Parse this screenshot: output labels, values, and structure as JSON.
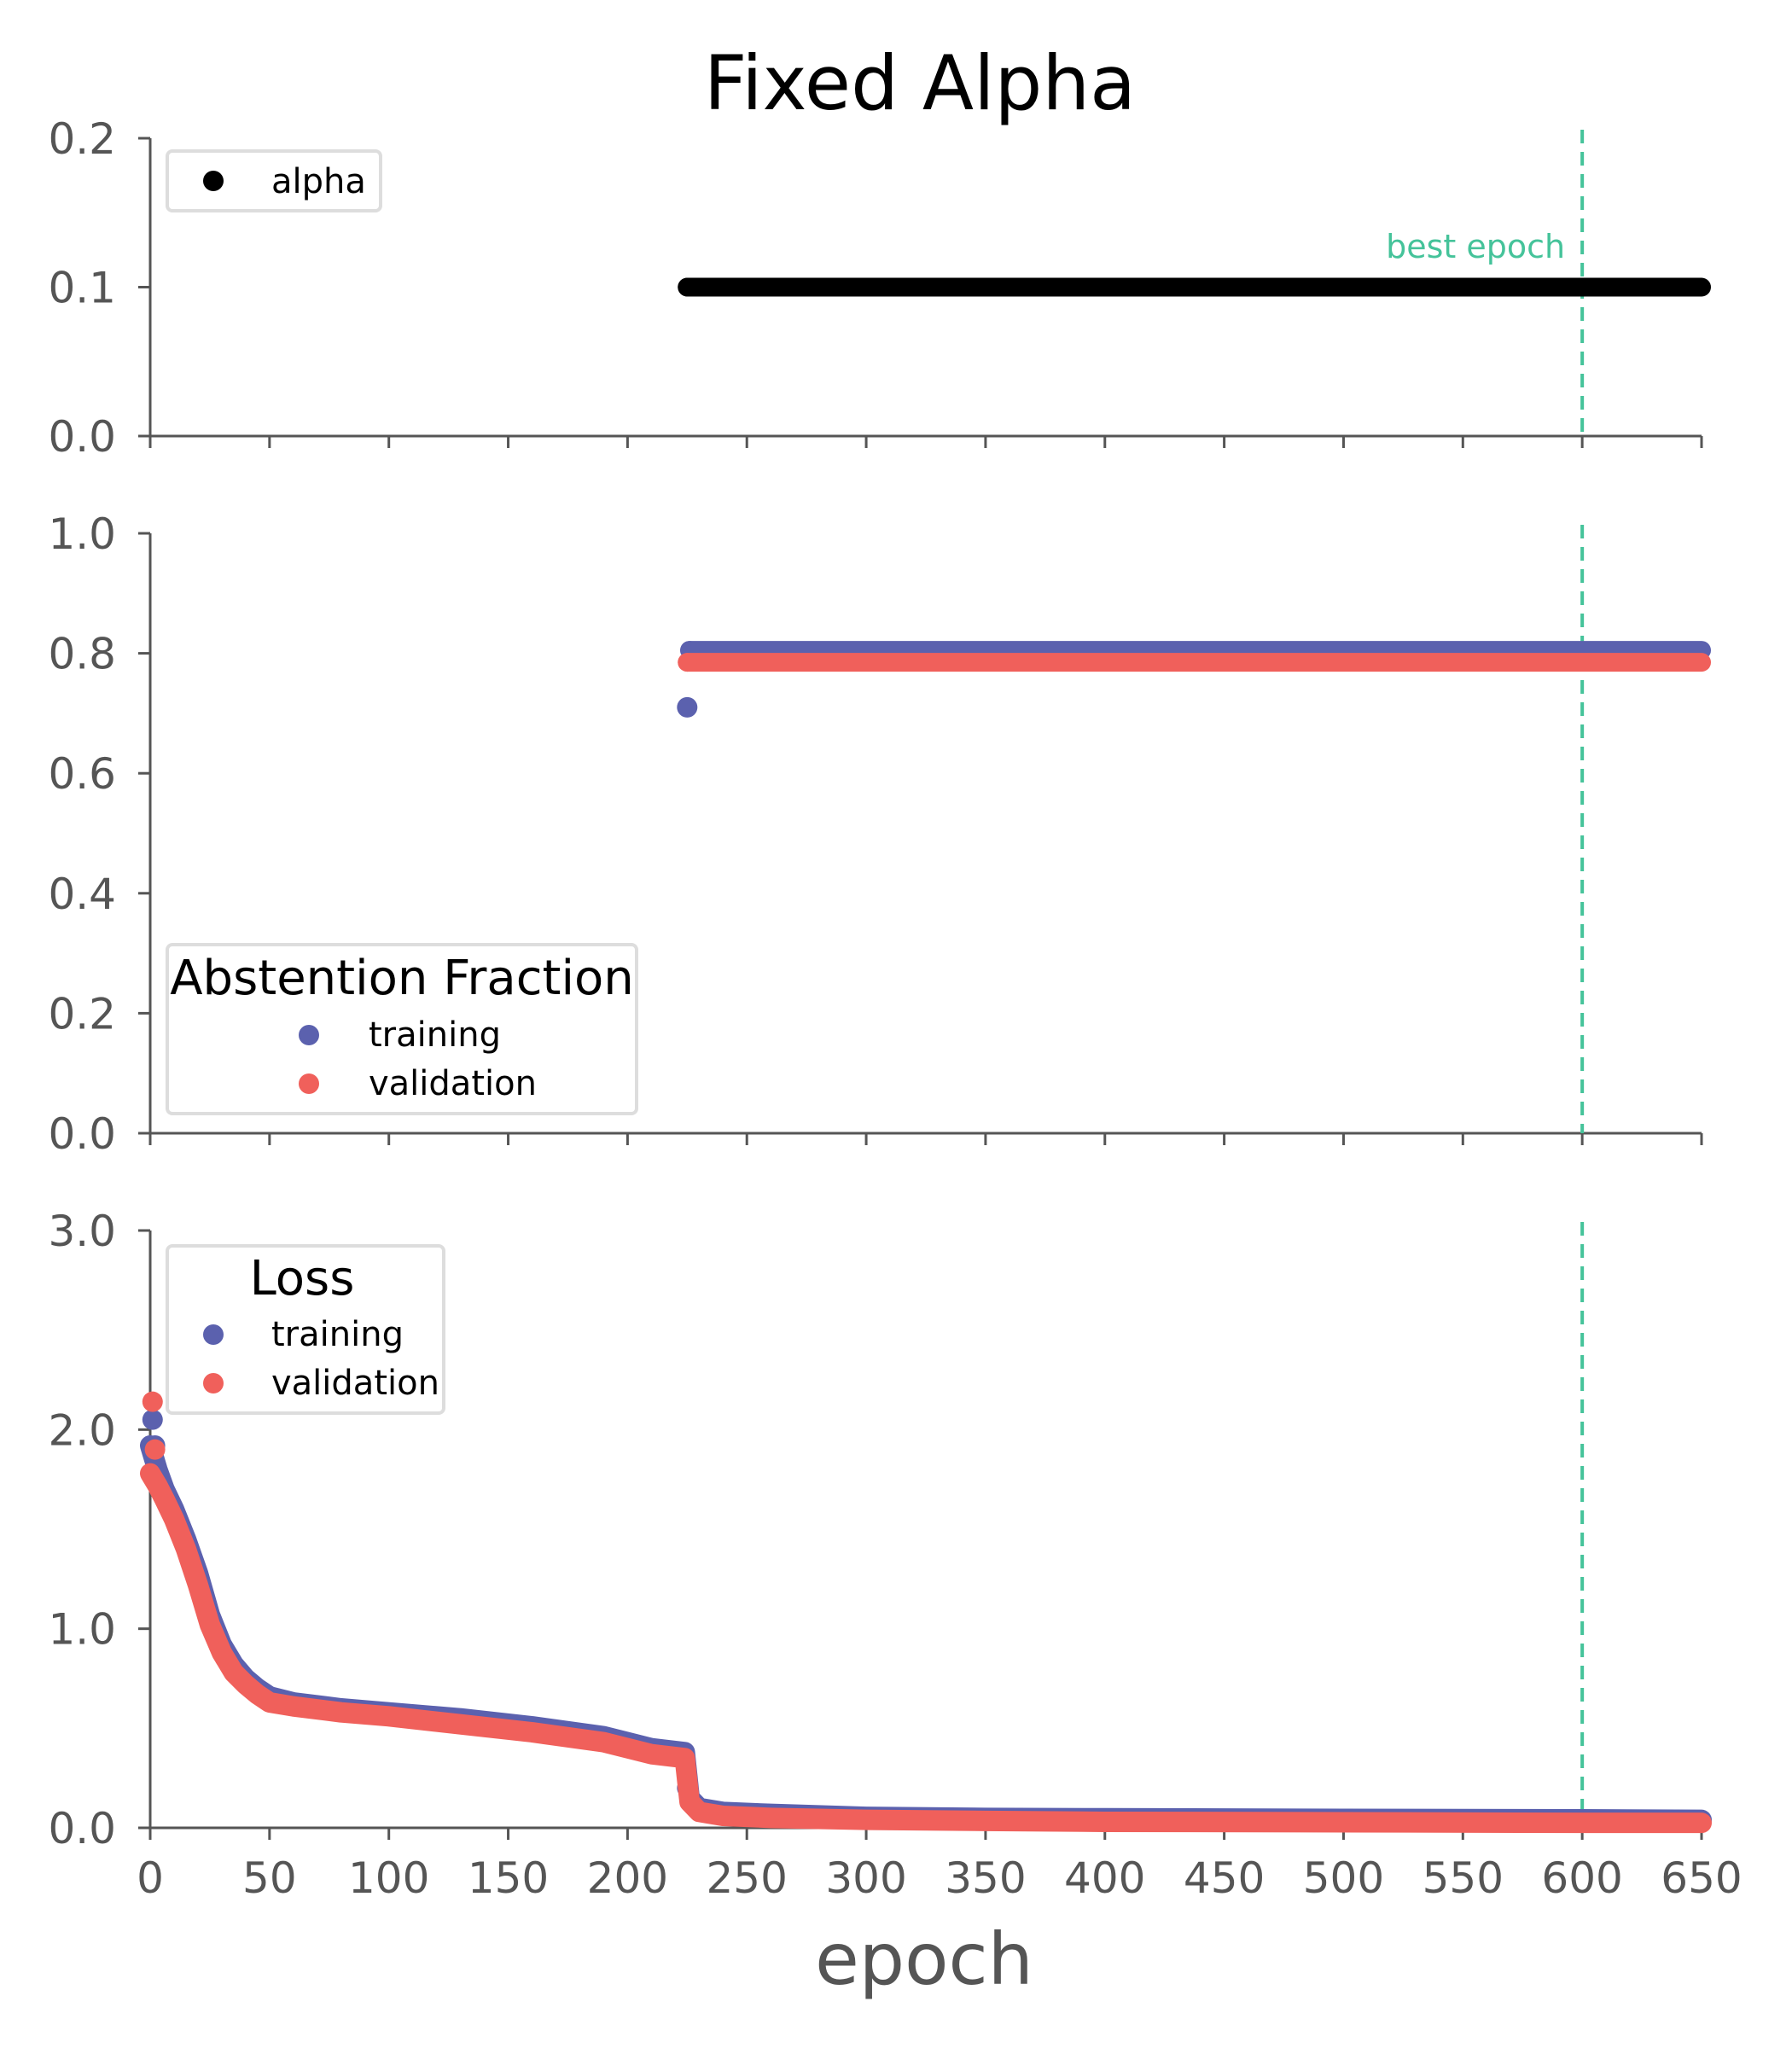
{
  "figure": {
    "title": "Fixed Alpha",
    "xlabel": "epoch"
  },
  "colors": {
    "alpha": "#000000",
    "training": "#5b61ae",
    "validation": "#f0605b",
    "best_epoch": "#45c39a",
    "axis": "#555555"
  },
  "chart_data": [
    {
      "type": "scatter",
      "panel": "alpha",
      "xlim": [
        0,
        650
      ],
      "ylim": [
        0.0,
        0.2
      ],
      "xticks": [
        "0",
        "50",
        "100",
        "150",
        "200",
        "250",
        "300",
        "350",
        "400",
        "450",
        "500",
        "550",
        "600",
        "650"
      ],
      "yticks": [
        "0.0",
        "0.1",
        "0.2"
      ],
      "legend": {
        "title": "",
        "placement": "top-left",
        "entries": [
          "alpha"
        ]
      },
      "annotations": [
        {
          "text": "best epoch",
          "x": 600
        }
      ],
      "vline": {
        "x": 600,
        "style": "dashed"
      },
      "series": [
        {
          "name": "alpha",
          "segments": [
            {
              "x_start": 225,
              "x_end": 650,
              "y": 0.1
            }
          ]
        }
      ]
    },
    {
      "type": "scatter",
      "panel": "abstention",
      "xlim": [
        0,
        650
      ],
      "ylim": [
        0.0,
        1.0
      ],
      "xticks": [
        "0",
        "50",
        "100",
        "150",
        "200",
        "250",
        "300",
        "350",
        "400",
        "450",
        "500",
        "550",
        "600",
        "650"
      ],
      "yticks": [
        "0.0",
        "0.2",
        "0.4",
        "0.6",
        "0.8",
        "1.0"
      ],
      "legend": {
        "title": "Abstention Fraction",
        "placement": "bottom-left",
        "entries": [
          "training",
          "validation"
        ]
      },
      "vline": {
        "x": 600,
        "style": "dashed"
      },
      "series": [
        {
          "name": "training",
          "points": [
            [
              225,
              0.71
            ]
          ],
          "segments": [
            {
              "x_start": 226,
              "x_end": 650,
              "y": 0.805
            }
          ]
        },
        {
          "name": "validation",
          "points": [],
          "segments": [
            {
              "x_start": 225,
              "x_end": 650,
              "y": 0.785
            }
          ]
        }
      ]
    },
    {
      "type": "scatter",
      "panel": "loss",
      "xlim": [
        0,
        650
      ],
      "ylim": [
        0.0,
        3.0
      ],
      "xticks": [
        "0",
        "50",
        "100",
        "150",
        "200",
        "250",
        "300",
        "350",
        "400",
        "450",
        "500",
        "550",
        "600",
        "650"
      ],
      "yticks": [
        "0.0",
        "1.0",
        "2.0",
        "3.0"
      ],
      "legend": {
        "title": "Loss",
        "placement": "top-left",
        "entries": [
          "training",
          "validation"
        ]
      },
      "vline": {
        "x": 600,
        "style": "dashed"
      },
      "series": [
        {
          "name": "training",
          "outliers": [
            [
              1,
              2.05
            ],
            [
              2,
              1.92
            ],
            [
              225,
              0.2
            ]
          ],
          "curve": [
            [
              0,
              1.92
            ],
            [
              3,
              1.8
            ],
            [
              6,
              1.7
            ],
            [
              10,
              1.6
            ],
            [
              15,
              1.45
            ],
            [
              20,
              1.28
            ],
            [
              25,
              1.07
            ],
            [
              30,
              0.92
            ],
            [
              35,
              0.82
            ],
            [
              40,
              0.75
            ],
            [
              45,
              0.7
            ],
            [
              50,
              0.66
            ],
            [
              60,
              0.63
            ],
            [
              80,
              0.6
            ],
            [
              100,
              0.58
            ],
            [
              130,
              0.55
            ],
            [
              160,
              0.51
            ],
            [
              190,
              0.46
            ],
            [
              210,
              0.4
            ],
            [
              224,
              0.38
            ],
            [
              226,
              0.15
            ],
            [
              230,
              0.1
            ],
            [
              240,
              0.08
            ],
            [
              260,
              0.07
            ],
            [
              300,
              0.055
            ],
            [
              350,
              0.05
            ],
            [
              400,
              0.048
            ],
            [
              500,
              0.045
            ],
            [
              600,
              0.043
            ],
            [
              650,
              0.04
            ]
          ]
        },
        {
          "name": "validation",
          "outliers": [
            [
              1,
              2.14
            ],
            [
              2,
              1.9
            ]
          ],
          "curve": [
            [
              0,
              1.78
            ],
            [
              3,
              1.72
            ],
            [
              6,
              1.65
            ],
            [
              10,
              1.55
            ],
            [
              15,
              1.4
            ],
            [
              20,
              1.22
            ],
            [
              25,
              1.02
            ],
            [
              30,
              0.88
            ],
            [
              35,
              0.78
            ],
            [
              40,
              0.72
            ],
            [
              45,
              0.67
            ],
            [
              50,
              0.63
            ],
            [
              60,
              0.61
            ],
            [
              80,
              0.58
            ],
            [
              100,
              0.56
            ],
            [
              130,
              0.52
            ],
            [
              160,
              0.48
            ],
            [
              190,
              0.43
            ],
            [
              210,
              0.37
            ],
            [
              224,
              0.35
            ],
            [
              226,
              0.13
            ],
            [
              230,
              0.08
            ],
            [
              240,
              0.06
            ],
            [
              260,
              0.05
            ],
            [
              300,
              0.04
            ],
            [
              350,
              0.035
            ],
            [
              400,
              0.03
            ],
            [
              500,
              0.028
            ],
            [
              600,
              0.025
            ],
            [
              650,
              0.025
            ]
          ]
        }
      ]
    }
  ]
}
